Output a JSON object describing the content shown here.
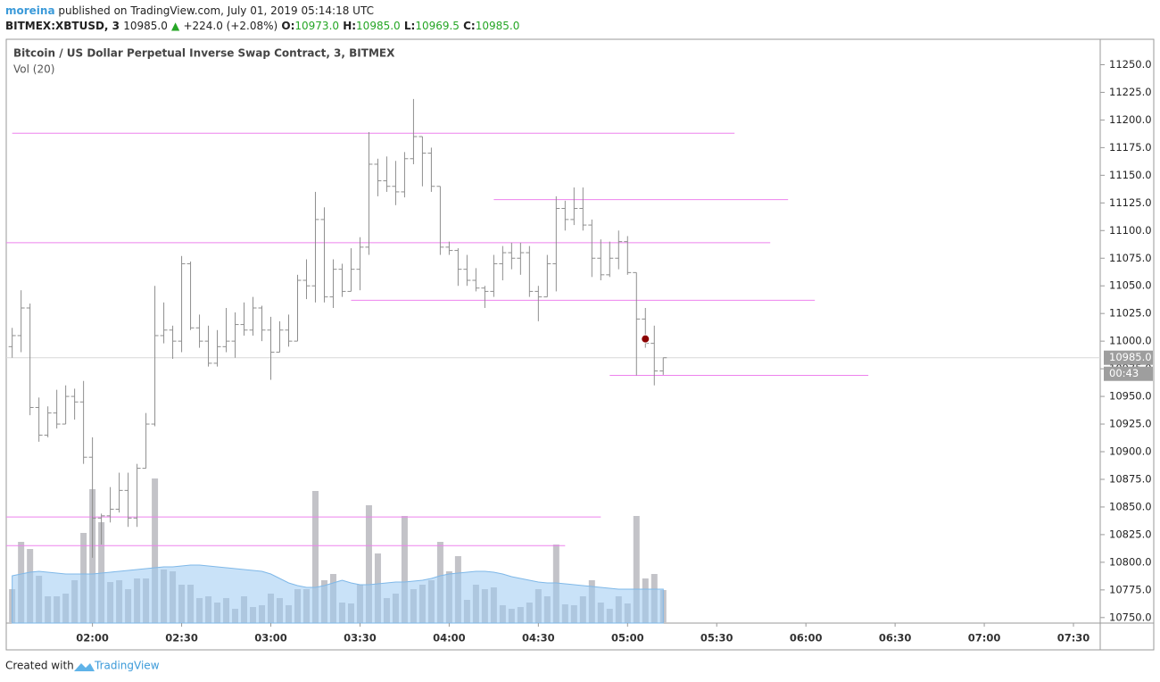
{
  "header": {
    "author": "moreina",
    "published": "published on TradingView.com, July 01, 2019 05:14:18 UTC"
  },
  "symbol": {
    "name": "BITMEX:XBTUSD, 3",
    "last": "10985.0",
    "arrow": "▲",
    "change": "+224.0 (+2.08%)",
    "o_label": "O:",
    "o": "10973.0",
    "h_label": "H:",
    "h": "10985.0",
    "l_label": "L:",
    "l": "10969.5",
    "c_label": "C:",
    "c": "10985.0"
  },
  "chart_data": {
    "type": "ohlc",
    "title": "Bitcoin / US Dollar Perpetual Inverse Swap Contract, 3, BITMEX",
    "volume_label": "Vol (20)",
    "x": [
      "01:33",
      "01:36",
      "01:39",
      "01:42",
      "01:45",
      "01:48",
      "01:51",
      "01:54",
      "01:57",
      "02:00",
      "02:03",
      "02:06",
      "02:09",
      "02:12",
      "02:15",
      "02:18",
      "02:21",
      "02:24",
      "02:27",
      "02:30",
      "02:33",
      "02:36",
      "02:39",
      "02:42",
      "02:45",
      "02:48",
      "02:51",
      "02:54",
      "02:57",
      "03:00",
      "03:03",
      "03:06",
      "03:09",
      "03:12",
      "03:15",
      "03:18",
      "03:21",
      "03:24",
      "03:27",
      "03:30",
      "03:33",
      "03:36",
      "03:39",
      "03:42",
      "03:45",
      "03:48",
      "03:51",
      "03:54",
      "03:57",
      "04:00",
      "04:03",
      "04:06",
      "04:09",
      "04:12",
      "04:15",
      "04:18",
      "04:21",
      "04:24",
      "04:27",
      "04:30",
      "04:33",
      "04:36",
      "04:39",
      "04:42",
      "04:45",
      "04:48",
      "04:51",
      "04:54",
      "04:57",
      "05:00",
      "05:03",
      "05:06",
      "05:09",
      "05:12"
    ],
    "open": [
      10995,
      11005,
      11030,
      10940,
      10915,
      10935,
      10925,
      10950,
      10945,
      10895,
      10840,
      10842,
      10848,
      10865,
      10840,
      10885,
      10925,
      11005,
      11010,
      11000,
      11070,
      11012,
      11000,
      10980,
      10995,
      11000,
      11015,
      11010,
      11030,
      11010,
      10990,
      11010,
      11000,
      11055,
      11050,
      11110,
      11040,
      11065,
      11045,
      11065,
      11085,
      11160,
      11145,
      11140,
      11135,
      11165,
      11185,
      11170,
      11140,
      11085,
      11082,
      11065,
      11055,
      11048,
      11045,
      11070,
      11080,
      11075,
      11080,
      11045,
      11040,
      11070,
      11120,
      11110,
      11120,
      11105,
      11075,
      11060,
      11075,
      11090,
      11062,
      11020,
      10998,
      10973
    ],
    "high": [
      11012,
      11046,
      11034,
      10949,
      10941,
      10956,
      10960,
      10957,
      10964,
      10913,
      10844,
      10868,
      10881,
      10881,
      10889,
      10935,
      11050,
      11035,
      11014,
      11077,
      11072,
      11024,
      11014,
      11010,
      11030,
      11026,
      11035,
      11040,
      11032,
      11022,
      11018,
      11024,
      11060,
      11074,
      11135,
      11121,
      11074,
      11070,
      11084,
      11094,
      11189,
      11165,
      11167,
      11163,
      11171,
      11219,
      11185,
      11175,
      11140,
      11090,
      11084,
      11078,
      11066,
      11050,
      11078,
      11086,
      11089,
      11089,
      11086,
      11050,
      11078,
      11131,
      11127,
      11139,
      11139,
      11110,
      11092,
      11090,
      11100,
      11095,
      11062,
      11030,
      11014,
      10985
    ],
    "low": [
      10985,
      10990,
      10933,
      10909,
      10913,
      10921,
      10925,
      10929,
      10889,
      10804,
      10816,
      10836,
      10845,
      10832,
      10832,
      10885,
      10923,
      10998,
      10984,
      10990,
      11010,
      10994,
      10977,
      10977,
      10990,
      10985,
      11005,
      11005,
      11000,
      10965,
      10990,
      10995,
      11000,
      11038,
      11035,
      11035,
      11030,
      11040,
      11045,
      11046,
      11078,
      11131,
      11135,
      11123,
      11130,
      11160,
      11140,
      11135,
      11078,
      11078,
      11050,
      11050,
      11045,
      11030,
      11040,
      11055,
      11065,
      11060,
      11040,
      11018,
      11040,
      11045,
      11100,
      11105,
      11100,
      11058,
      11055,
      11058,
      11065,
      11060,
      10969,
      10994,
      10960,
      10969.5
    ],
    "close": [
      11005,
      11030,
      10940,
      10915,
      10935,
      10925,
      10950,
      10945,
      10895,
      10840,
      10842,
      10848,
      10865,
      10840,
      10885,
      10925,
      11005,
      11010,
      11000,
      11070,
      11012,
      11000,
      10980,
      10995,
      11000,
      11015,
      11010,
      11030,
      11010,
      10990,
      11010,
      11000,
      11055,
      11050,
      11110,
      11040,
      11065,
      11045,
      11065,
      11085,
      11160,
      11145,
      11140,
      11135,
      11165,
      11185,
      11170,
      11140,
      11085,
      11082,
      11065,
      11055,
      11048,
      11045,
      11070,
      11080,
      11075,
      11080,
      11045,
      11040,
      11070,
      11120,
      11110,
      11120,
      11105,
      11075,
      11060,
      11075,
      11090,
      11062,
      11020,
      10998,
      10973,
      10985
    ],
    "volume": [
      38,
      91,
      83,
      53,
      30,
      30,
      33,
      48,
      101,
      150,
      113,
      46,
      48,
      38,
      50,
      50,
      162,
      60,
      58,
      43,
      43,
      28,
      30,
      23,
      28,
      16,
      30,
      18,
      20,
      33,
      28,
      20,
      38,
      38,
      148,
      48,
      55,
      23,
      22,
      43,
      132,
      78,
      28,
      33,
      120,
      38,
      43,
      48,
      91,
      58,
      75,
      26,
      43,
      38,
      40,
      20,
      16,
      18,
      23,
      38,
      30,
      88,
      21,
      20,
      30,
      48,
      23,
      16,
      30,
      22,
      120,
      50,
      55,
      37
    ],
    "volume_ma": [
      53,
      55,
      57,
      58,
      57,
      56,
      55,
      55,
      55,
      55,
      56,
      57,
      58,
      59,
      60,
      61,
      62,
      63,
      63,
      64,
      65,
      65,
      64,
      63,
      62,
      61,
      60,
      59,
      58,
      55,
      50,
      45,
      42,
      40,
      40,
      42,
      45,
      48,
      45,
      43,
      43,
      44,
      45,
      46,
      46,
      47,
      48,
      50,
      53,
      55,
      56,
      57,
      58,
      58,
      57,
      55,
      52,
      50,
      48,
      46,
      45,
      45,
      44,
      43,
      42,
      41,
      40,
      39,
      38,
      38,
      38,
      38,
      38,
      38
    ],
    "xlim": [
      "01:31",
      "07:39"
    ],
    "ylim": [
      10745,
      11273
    ],
    "xticks": [
      "02:00",
      "02:30",
      "03:00",
      "03:30",
      "04:00",
      "04:30",
      "05:00",
      "05:30",
      "06:00",
      "06:30",
      "07:00",
      "07:30"
    ],
    "yticks": [
      {
        "value": 10750,
        "label": "10750.0"
      },
      {
        "value": 10775,
        "label": "10775.0"
      },
      {
        "value": 10800,
        "label": "10800.0"
      },
      {
        "value": 10825,
        "label": "10825.0"
      },
      {
        "value": 10850,
        "label": "10850.0"
      },
      {
        "value": 10875,
        "label": "10875.0"
      },
      {
        "value": 10900,
        "label": "10900.0"
      },
      {
        "value": 10925,
        "label": "10925.0"
      },
      {
        "value": 10950,
        "label": "10950.0"
      },
      {
        "value": 10975,
        "label": "10975.0"
      },
      {
        "value": 11000,
        "label": "11000.0"
      },
      {
        "value": 11025,
        "label": "11025.0"
      },
      {
        "value": 11050,
        "label": "11050.0"
      },
      {
        "value": 11075,
        "label": "11075.0"
      },
      {
        "value": 11100,
        "label": "11100.0"
      },
      {
        "value": 11125,
        "label": "11125.0"
      },
      {
        "value": 11150,
        "label": "11150.0"
      },
      {
        "value": 11175,
        "label": "11175.0"
      },
      {
        "value": 11200,
        "label": "11200.0"
      },
      {
        "value": 11225,
        "label": "11225.0"
      },
      {
        "value": 11250,
        "label": "11250.0"
      }
    ],
    "hlines": [
      {
        "price": 11188,
        "start": "01:33",
        "end": "05:36"
      },
      {
        "price": 11128,
        "start": "04:15",
        "end": "05:54"
      },
      {
        "price": 11089,
        "start": "01:31",
        "end": "05:48"
      },
      {
        "price": 11037,
        "start": "03:27",
        "end": "06:03"
      },
      {
        "price": 10969,
        "start": "04:54",
        "end": "06:21"
      },
      {
        "price": 10841,
        "start": "01:31",
        "end": "04:51"
      },
      {
        "price": 10815,
        "start": "01:31",
        "end": "04:39"
      }
    ],
    "marker": {
      "x": "05:06",
      "price": 11002
    },
    "last_price": {
      "value": 10985,
      "label": "10985.0"
    },
    "countdown": "00:43",
    "bar_color": "#8e8e8e",
    "volume_color": "#c3c3c8",
    "volume_ma_color": "#9ccbf2",
    "hline_color": "#ee82ee",
    "marker_color": "#8b0000",
    "grid": false
  },
  "footer": {
    "text": "Created with",
    "brand": "TradingView"
  }
}
